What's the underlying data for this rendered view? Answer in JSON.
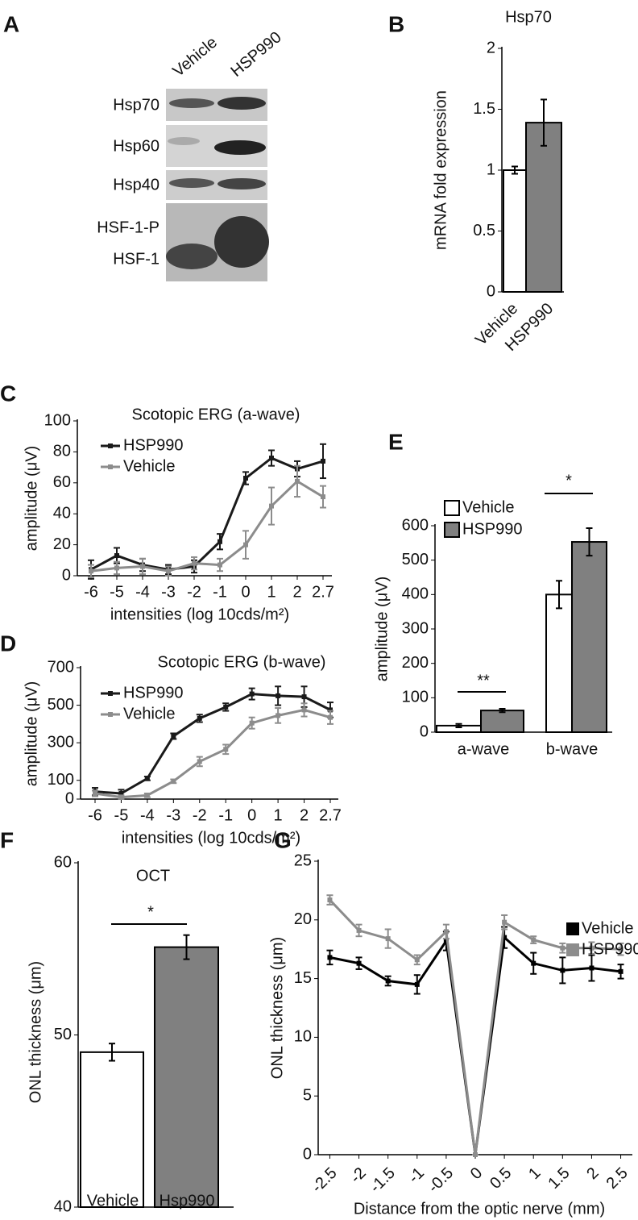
{
  "blot": {
    "panel": "A",
    "lanes": [
      "Vehicle",
      "HSP990"
    ],
    "rows": [
      "Hsp70",
      "Hsp60",
      "Hsp40",
      "HSF-1-P",
      "HSF-1"
    ]
  },
  "chart_data": [
    {
      "type": "bar",
      "panel": "B",
      "title": "Hsp70",
      "ylabel": "mRNA fold expression",
      "categories": [
        "Vehicle",
        "HSP990"
      ],
      "values": [
        1,
        1.39
      ],
      "errors": [
        0.03,
        0.19
      ],
      "colors": [
        "#ffffff",
        "#808080"
      ],
      "ylim": [
        0,
        2
      ],
      "yticks": [
        0,
        0.5,
        1,
        1.5,
        2
      ]
    },
    {
      "type": "line",
      "panel": "C",
      "title": "Scotopic ERG (a-wave)",
      "ylabel": "amplitude (μV)",
      "xlabel": "intensities (log 10cds/m²)",
      "categories": [
        "-6",
        "-5",
        "-4",
        "-3",
        "-2",
        "-1",
        "0",
        "1",
        "2",
        "2.7"
      ],
      "series": [
        {
          "name": "HSP990",
          "color": "#1a1a1a",
          "values": [
            4,
            13,
            7,
            4,
            6,
            22,
            63,
            76,
            69,
            74
          ],
          "errors": [
            6,
            5,
            4,
            3,
            4,
            5,
            4,
            5,
            5,
            11
          ]
        },
        {
          "name": "Vehicle",
          "color": "#8c8c8c",
          "values": [
            3,
            5,
            6,
            3,
            8,
            7,
            20,
            45,
            61,
            51
          ],
          "errors": [
            4,
            4,
            5,
            3,
            4,
            4,
            9,
            12,
            10,
            7
          ]
        }
      ],
      "ylim": [
        0,
        100
      ],
      "yticks": [
        0,
        20,
        40,
        60,
        80,
        100
      ]
    },
    {
      "type": "line",
      "panel": "D",
      "title": "Scotopic ERG (b-wave)",
      "ylabel": "amplitude (μV)",
      "xlabel": "intensities (log 10cds/m²)",
      "categories": [
        "-6",
        "-5",
        "-4",
        "-3",
        "-2",
        "-1",
        "0",
        "1",
        "2",
        "2.7"
      ],
      "series": [
        {
          "name": "HSP990",
          "color": "#1a1a1a",
          "values": [
            40,
            30,
            110,
            335,
            430,
            490,
            560,
            550,
            545,
            475
          ],
          "errors": [
            20,
            20,
            10,
            15,
            20,
            20,
            30,
            50,
            55,
            40
          ]
        },
        {
          "name": "Vehicle",
          "color": "#8c8c8c",
          "values": [
            30,
            10,
            20,
            95,
            200,
            265,
            405,
            445,
            475,
            435
          ],
          "errors": [
            15,
            10,
            10,
            10,
            25,
            25,
            30,
            40,
            35,
            35
          ]
        }
      ],
      "ylim": [
        0,
        700
      ],
      "yticks": [
        0,
        100,
        300,
        500,
        700
      ]
    },
    {
      "type": "bar",
      "panel": "E",
      "ylabel": "amplitude (μV)",
      "categories": [
        "a-wave",
        "b-wave"
      ],
      "series": [
        {
          "name": "Vehicle",
          "color": "#ffffff",
          "values": [
            19,
            400
          ],
          "errors": [
            5,
            40
          ]
        },
        {
          "name": "HSP990",
          "color": "#808080",
          "values": [
            63,
            553
          ],
          "errors": [
            5,
            40
          ]
        }
      ],
      "annotations": [
        "**",
        "*"
      ],
      "ylim": [
        0,
        600
      ],
      "yticks": [
        0,
        100,
        200,
        300,
        400,
        500,
        600
      ]
    },
    {
      "type": "bar",
      "panel": "F",
      "title": "OCT",
      "ylabel": "ONL thickness (μm)",
      "categories": [
        "Vehicle",
        "Hsp990"
      ],
      "values": [
        49,
        55.1
      ],
      "errors": [
        0.5,
        0.7
      ],
      "colors": [
        "#ffffff",
        "#808080"
      ],
      "annotations": [
        "*"
      ],
      "ylim": [
        40,
        60
      ],
      "yticks": [
        40,
        50,
        60
      ]
    },
    {
      "type": "line",
      "panel": "G",
      "ylabel": "ONL thickness (μm)",
      "xlabel": "Distance from the optic nerve (mm)",
      "x": [
        -2.5,
        -2,
        -1.5,
        -1,
        -0.5,
        0,
        0.5,
        1,
        1.5,
        2,
        2.5
      ],
      "series": [
        {
          "name": "Vehicle",
          "color": "#000000",
          "values": [
            16.8,
            16.3,
            14.8,
            14.5,
            18.2,
            0,
            18.5,
            16.3,
            15.7,
            15.9,
            15.6
          ],
          "errors": [
            0.6,
            0.5,
            0.4,
            0.8,
            0.8,
            0,
            0.9,
            0.9,
            1.1,
            1.1,
            0.6
          ]
        },
        {
          "name": "HSP990",
          "color": "#8c8c8c",
          "values": [
            21.7,
            19.1,
            18.4,
            16.6,
            19,
            0,
            19.8,
            18.3,
            17.6,
            17.6,
            17.5
          ],
          "errors": [
            0.4,
            0.5,
            0.8,
            0.4,
            0.6,
            0,
            0.6,
            0.3,
            0.4,
            0.5,
            0.5
          ]
        }
      ],
      "xlim": [
        -2.7,
        2.7
      ],
      "xticks": [
        -2.5,
        -2,
        -1.5,
        -1,
        -0.5,
        0,
        0.5,
        1,
        1.5,
        2,
        2.5
      ],
      "ylim": [
        0,
        25
      ],
      "yticks": [
        0,
        5,
        10,
        15,
        20,
        25
      ]
    }
  ]
}
